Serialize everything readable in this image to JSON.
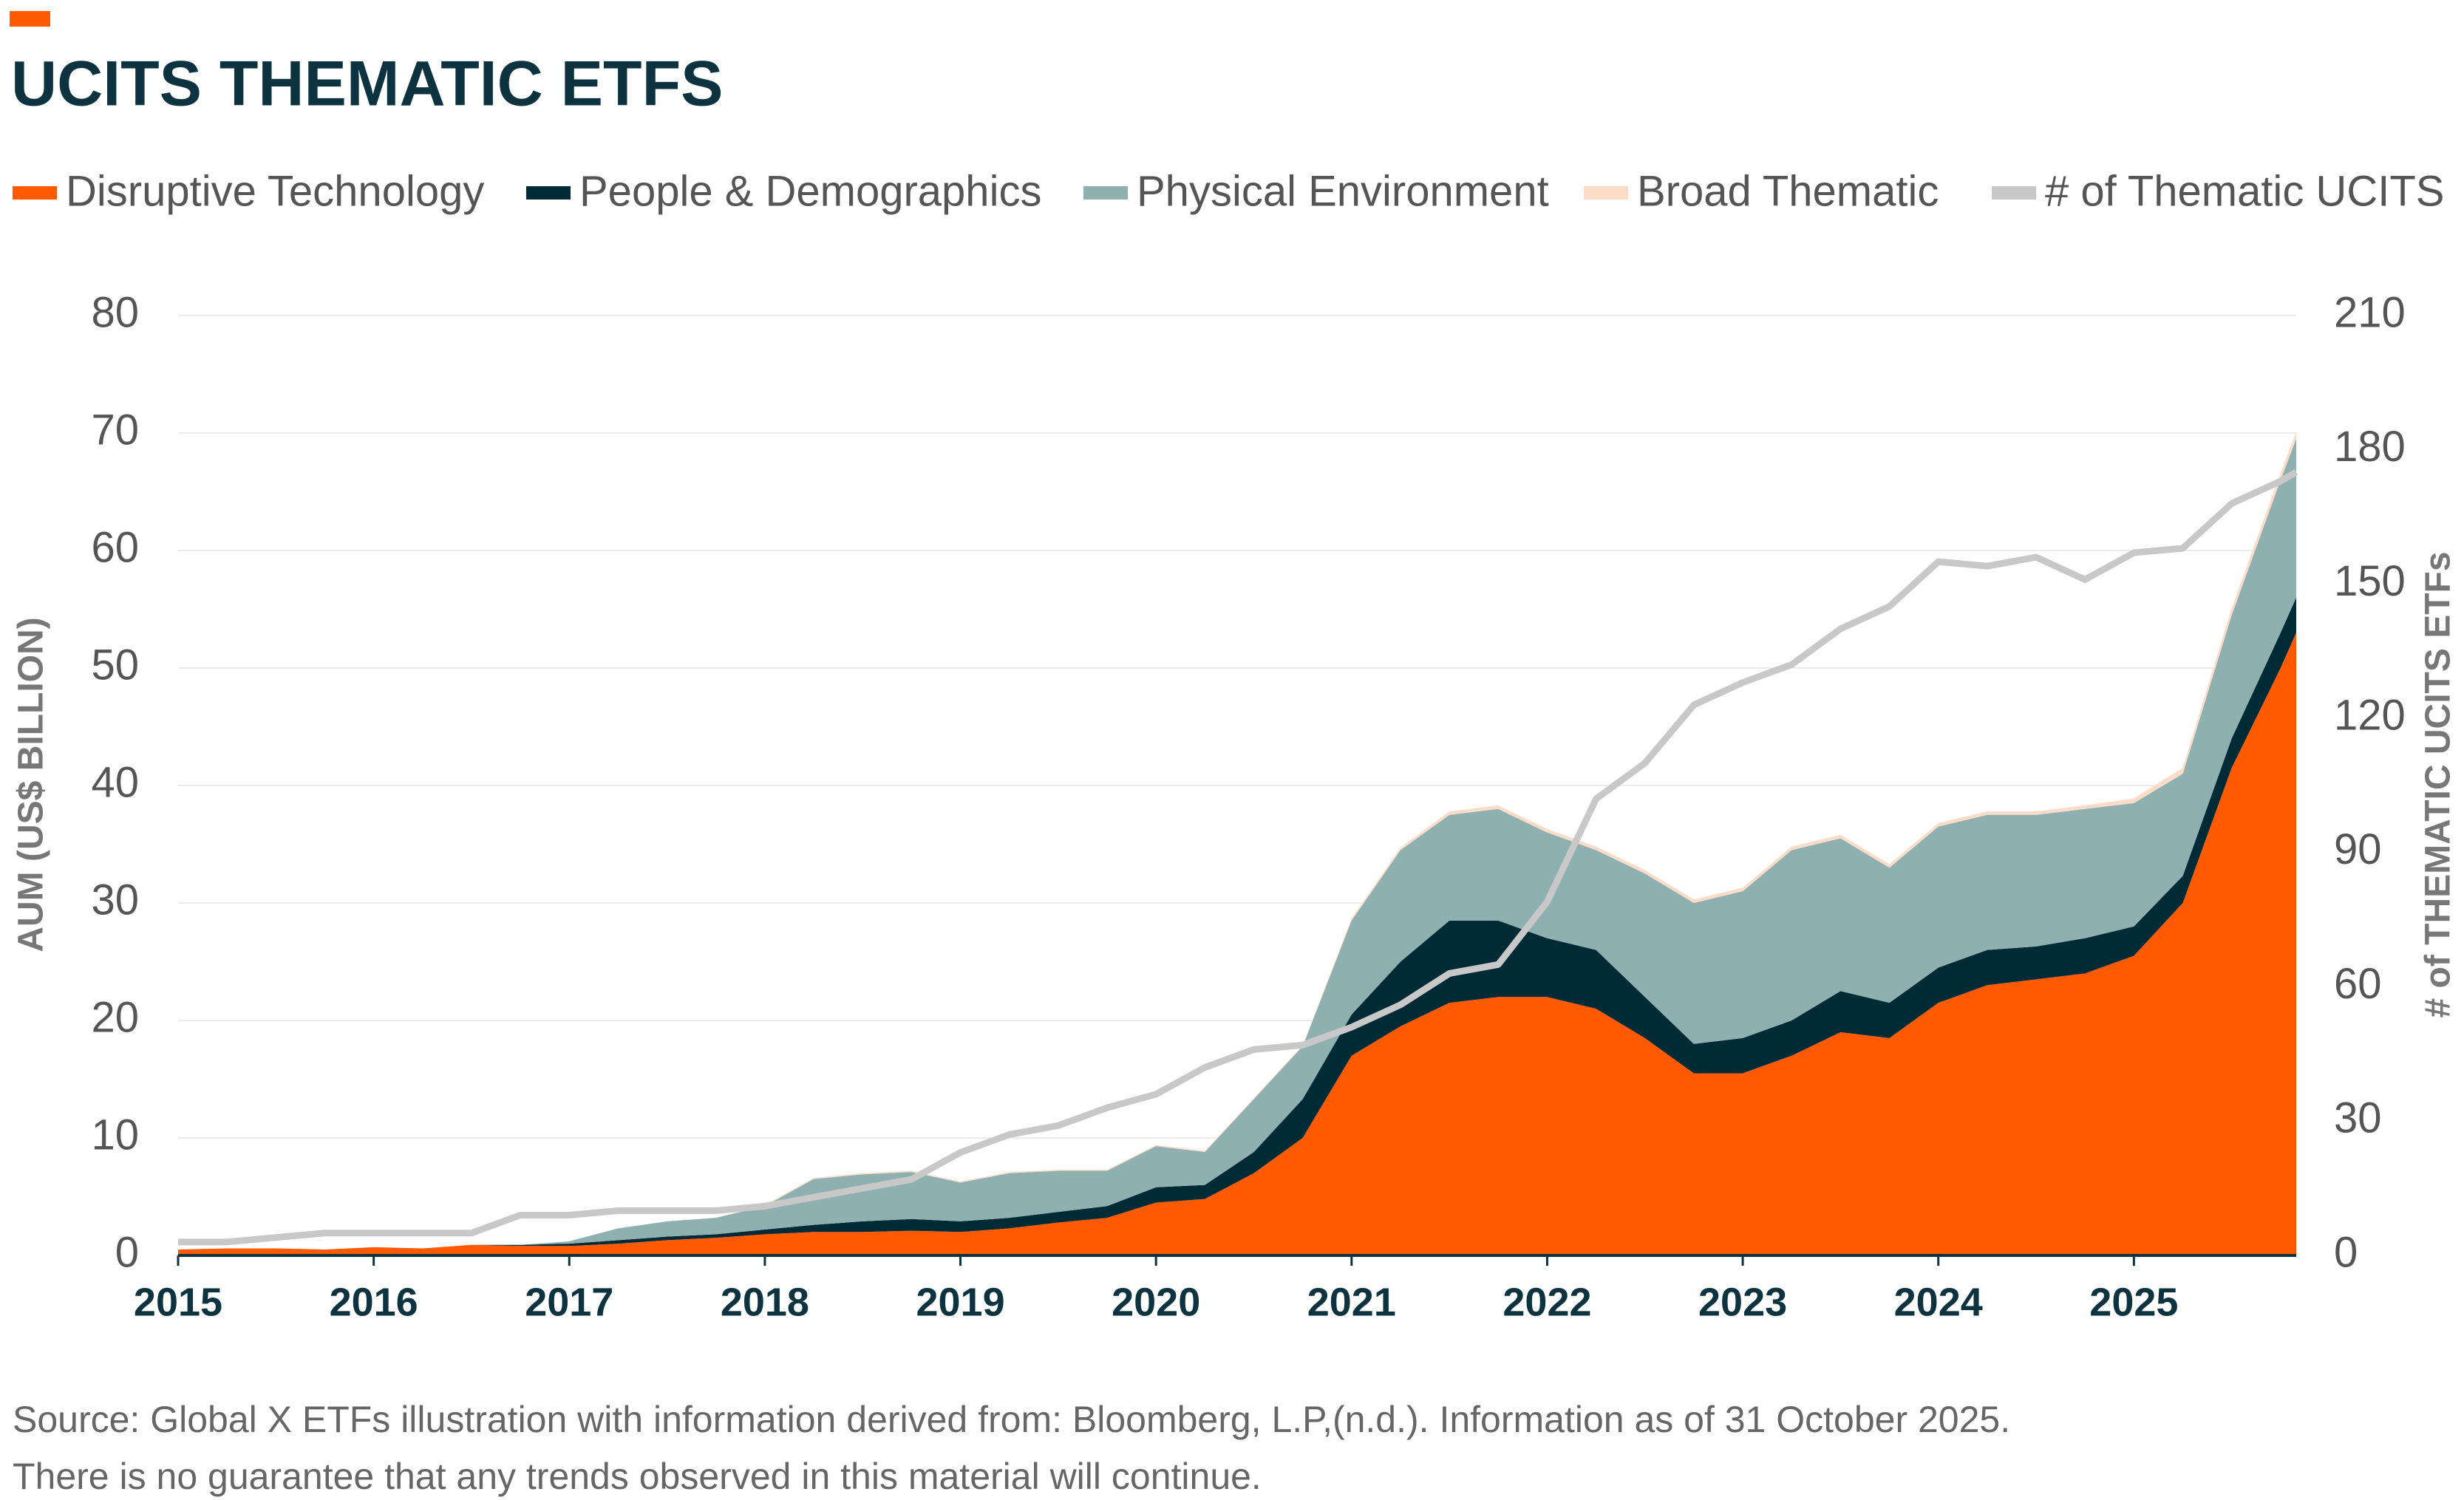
{
  "chart_data": {
    "type": "stacked-area",
    "title": "UCITS THEMATIC ETFS",
    "y_label": "AUM (US$ BILLION)",
    "y2_label": "# of THEMATIC UCITS ETFs",
    "notes": [
      "Source: Global X ETFs illustration with information derived from: Bloomberg, L.P,(n.d.). Information as of 31 October 2025.",
      "There is no guarantee that any trends observed in this material will continue."
    ],
    "x": [
      2015,
      2015.25,
      2015.5,
      2015.75,
      2016,
      2016.25,
      2016.5,
      2016.75,
      2017,
      2017.25,
      2017.5,
      2017.75,
      2018,
      2018.25,
      2018.5,
      2018.75,
      2019,
      2019.25,
      2019.5,
      2019.75,
      2020,
      2020.25,
      2020.5,
      2020.75,
      2021,
      2021.25,
      2021.5,
      2021.75,
      2022,
      2022.25,
      2022.5,
      2022.75,
      2023,
      2023.25,
      2023.5,
      2023.75,
      2024,
      2024.25,
      2024.5,
      2024.75,
      2025,
      2025.25,
      2025.5,
      2025.75,
      2025.83
    ],
    "xlim": [
      2015,
      2025.83
    ],
    "xticks": [
      2015,
      2016,
      2017,
      2018,
      2019,
      2020,
      2021,
      2022,
      2023,
      2024,
      2025
    ],
    "ylim": [
      0,
      80
    ],
    "yticks": [
      0,
      10,
      20,
      30,
      40,
      50,
      60,
      70,
      80
    ],
    "y2lim": [
      0,
      210
    ],
    "y2ticks": [
      0,
      30,
      60,
      90,
      120,
      150,
      180,
      210
    ],
    "grid": true,
    "series": [
      {
        "name": "Disruptive Technology",
        "color": "#ff5a00",
        "values": [
          0.5,
          0.6,
          0.6,
          0.5,
          0.7,
          0.6,
          0.9,
          0.8,
          0.8,
          1.0,
          1.3,
          1.5,
          1.8,
          2.0,
          2.0,
          2.1,
          2.0,
          2.3,
          2.8,
          3.2,
          4.5,
          4.8,
          7,
          10,
          17,
          19.5,
          21.5,
          22,
          22,
          21,
          18.5,
          15.5,
          15.5,
          17,
          19,
          18.5,
          21.5,
          23,
          23.5,
          24,
          25.5,
          30,
          41.5,
          50,
          53
        ]
      },
      {
        "name": "People & Demographics",
        "color": "#002b36",
        "values": [
          0,
          0,
          0,
          0,
          0,
          0,
          0,
          0.1,
          0.2,
          0.3,
          0.3,
          0.3,
          0.4,
          0.6,
          0.9,
          1.0,
          0.9,
          0.9,
          0.9,
          1.0,
          1.3,
          1.2,
          1.8,
          3.3,
          3.5,
          5.5,
          7,
          6.5,
          5,
          5,
          3.5,
          2.5,
          3,
          3,
          3.5,
          3,
          3,
          3,
          2.8,
          3,
          2.5,
          2.3,
          2.5,
          3,
          3
        ]
      },
      {
        "name": "Physical Environment",
        "color": "#8fb0b0",
        "values": [
          0,
          0,
          0,
          0,
          0,
          0,
          0,
          0,
          0.2,
          1.0,
          1.3,
          1.4,
          2.0,
          3.9,
          4.0,
          4.0,
          3.3,
          3.8,
          3.5,
          3.0,
          3.5,
          2.8,
          4.5,
          4.5,
          8,
          9.5,
          9,
          9.5,
          9,
          8.5,
          10.5,
          12,
          12.5,
          14.5,
          13,
          11.5,
          12,
          11.5,
          11.2,
          11,
          10.5,
          8.7,
          10.5,
          13,
          13.5
        ]
      },
      {
        "name": "Broad Thematic",
        "color": "#fbdcc8",
        "values": [
          0,
          0,
          0,
          0,
          0,
          0,
          0,
          0,
          0,
          0,
          0,
          0,
          0.1,
          0.1,
          0.1,
          0.1,
          0.1,
          0.1,
          0.1,
          0.1,
          0.1,
          0.1,
          0.1,
          0.1,
          0.2,
          0.2,
          0.3,
          0.3,
          0.3,
          0.3,
          0.3,
          0.3,
          0.3,
          0.3,
          0.3,
          0.3,
          0.3,
          0.3,
          0.3,
          0.3,
          0.4,
          0.5,
          0.6,
          0.6,
          0.6
        ]
      },
      {
        "name": "# of Thematic UCITS",
        "color": "#c8c8c8",
        "type": "line",
        "axis": "y2",
        "values": [
          3,
          3,
          4,
          5,
          5,
          5,
          5,
          9,
          9,
          10,
          10,
          10,
          11,
          13,
          15,
          17,
          23,
          27,
          29,
          33,
          36,
          42,
          46,
          47,
          51,
          56,
          63,
          65,
          79,
          102,
          110,
          123,
          128,
          132,
          140,
          145,
          155,
          154,
          156,
          151,
          157,
          158,
          168,
          173,
          175
        ]
      }
    ]
  }
}
